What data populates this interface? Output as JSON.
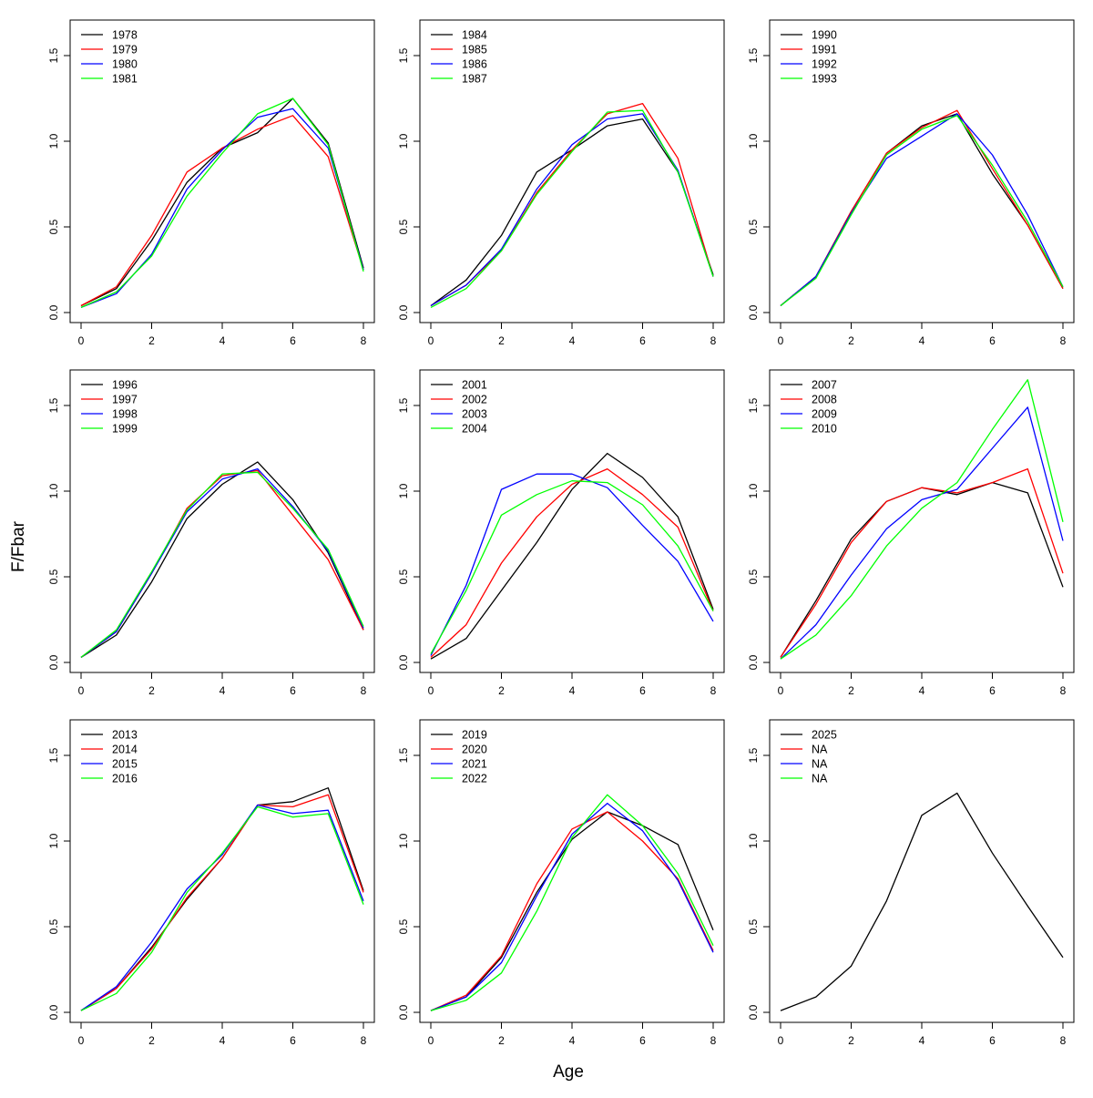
{
  "chart_data": {
    "type": "line",
    "xlabel": "Age",
    "ylabel": "F/Fbar",
    "xlim": [
      0,
      8
    ],
    "ylim": [
      0,
      1.75
    ],
    "x_ticks": [
      0,
      2,
      4,
      6,
      8
    ],
    "y_ticks": [
      0.0,
      0.5,
      1.0,
      1.5
    ],
    "y_tick_labels": [
      "0.0",
      "0.5",
      "1.0",
      "1.5"
    ],
    "grid": false,
    "legend_position": "top-left",
    "x": [
      0,
      1,
      2,
      3,
      4,
      5,
      6,
      7,
      8
    ],
    "series_colors": [
      "#000000",
      "#ff0000",
      "#0000ff",
      "#00ff00"
    ],
    "panels": [
      {
        "series": [
          {
            "name": "1978",
            "values": [
              0.04,
              0.14,
              0.42,
              0.76,
              0.96,
              1.05,
              1.25,
              0.99,
              0.26
            ]
          },
          {
            "name": "1979",
            "values": [
              0.04,
              0.15,
              0.45,
              0.82,
              0.96,
              1.07,
              1.15,
              0.91,
              0.25
            ]
          },
          {
            "name": "1980",
            "values": [
              0.03,
              0.11,
              0.34,
              0.72,
              0.95,
              1.14,
              1.19,
              0.96,
              0.25
            ]
          },
          {
            "name": "1981",
            "values": [
              0.03,
              0.12,
              0.33,
              0.68,
              0.93,
              1.16,
              1.25,
              0.98,
              0.24
            ]
          }
        ]
      },
      {
        "series": [
          {
            "name": "1984",
            "values": [
              0.04,
              0.19,
              0.45,
              0.82,
              0.95,
              1.09,
              1.13,
              0.82,
              0.22
            ]
          },
          {
            "name": "1985",
            "values": [
              0.04,
              0.16,
              0.36,
              0.7,
              0.95,
              1.16,
              1.22,
              0.9,
              0.21
            ]
          },
          {
            "name": "1986",
            "values": [
              0.04,
              0.16,
              0.37,
              0.72,
              0.98,
              1.13,
              1.16,
              0.83,
              0.21
            ]
          },
          {
            "name": "1987",
            "values": [
              0.03,
              0.14,
              0.36,
              0.69,
              0.94,
              1.17,
              1.18,
              0.82,
              0.21
            ]
          }
        ]
      },
      {
        "series": [
          {
            "name": "1990",
            "values": [
              0.04,
              0.21,
              0.59,
              0.93,
              1.09,
              1.16,
              0.81,
              0.51,
              0.14
            ]
          },
          {
            "name": "1991",
            "values": [
              0.04,
              0.21,
              0.59,
              0.93,
              1.08,
              1.18,
              0.84,
              0.51,
              0.14
            ]
          },
          {
            "name": "1992",
            "values": [
              0.04,
              0.21,
              0.58,
              0.9,
              1.03,
              1.16,
              0.92,
              0.57,
              0.15
            ]
          },
          {
            "name": "1993",
            "values": [
              0.04,
              0.2,
              0.57,
              0.92,
              1.07,
              1.15,
              0.86,
              0.53,
              0.15
            ]
          }
        ]
      },
      {
        "series": [
          {
            "name": "1996",
            "values": [
              0.03,
              0.16,
              0.47,
              0.84,
              1.04,
              1.17,
              0.95,
              0.64,
              0.19
            ]
          },
          {
            "name": "1997",
            "values": [
              0.03,
              0.18,
              0.52,
              0.9,
              1.09,
              1.12,
              0.86,
              0.6,
              0.19
            ]
          },
          {
            "name": "1998",
            "values": [
              0.03,
              0.18,
              0.52,
              0.88,
              1.07,
              1.13,
              0.91,
              0.65,
              0.2
            ]
          },
          {
            "name": "1999",
            "values": [
              0.03,
              0.19,
              0.53,
              0.89,
              1.1,
              1.11,
              0.9,
              0.66,
              0.21
            ]
          }
        ]
      },
      {
        "series": [
          {
            "name": "2001",
            "values": [
              0.02,
              0.14,
              0.42,
              0.7,
              1.01,
              1.22,
              1.08,
              0.85,
              0.31
            ]
          },
          {
            "name": "2002",
            "values": [
              0.03,
              0.22,
              0.58,
              0.85,
              1.04,
              1.13,
              0.98,
              0.79,
              0.3
            ]
          },
          {
            "name": "2003",
            "values": [
              0.04,
              0.45,
              1.01,
              1.1,
              1.1,
              1.02,
              0.8,
              0.59,
              0.24
            ]
          },
          {
            "name": "2004",
            "values": [
              0.05,
              0.42,
              0.86,
              0.98,
              1.06,
              1.05,
              0.92,
              0.68,
              0.3
            ]
          }
        ]
      },
      {
        "series": [
          {
            "name": "2007",
            "values": [
              0.03,
              0.36,
              0.72,
              0.94,
              1.02,
              0.98,
              1.05,
              0.99,
              0.44
            ]
          },
          {
            "name": "2008",
            "values": [
              0.03,
              0.34,
              0.7,
              0.94,
              1.02,
              0.99,
              1.05,
              1.13,
              0.52
            ]
          },
          {
            "name": "2009",
            "values": [
              0.02,
              0.22,
              0.51,
              0.78,
              0.95,
              1.01,
              1.25,
              1.49,
              0.71
            ]
          },
          {
            "name": "2010",
            "values": [
              0.02,
              0.16,
              0.39,
              0.68,
              0.9,
              1.05,
              1.36,
              1.65,
              0.82
            ]
          }
        ]
      },
      {
        "series": [
          {
            "name": "2013",
            "values": [
              0.01,
              0.14,
              0.38,
              0.66,
              0.9,
              1.21,
              1.23,
              1.31,
              0.71
            ]
          },
          {
            "name": "2014",
            "values": [
              0.01,
              0.14,
              0.37,
              0.67,
              0.9,
              1.21,
              1.2,
              1.27,
              0.7
            ]
          },
          {
            "name": "2015",
            "values": [
              0.01,
              0.15,
              0.41,
              0.72,
              0.92,
              1.21,
              1.16,
              1.18,
              0.65
            ]
          },
          {
            "name": "2016",
            "values": [
              0.01,
              0.11,
              0.35,
              0.7,
              0.93,
              1.2,
              1.14,
              1.16,
              0.63
            ]
          }
        ]
      },
      {
        "series": [
          {
            "name": "2019",
            "values": [
              0.01,
              0.09,
              0.32,
              0.7,
              1.01,
              1.17,
              1.09,
              0.98,
              0.48
            ]
          },
          {
            "name": "2020",
            "values": [
              0.01,
              0.1,
              0.33,
              0.75,
              1.07,
              1.17,
              1.0,
              0.78,
              0.36
            ]
          },
          {
            "name": "2021",
            "values": [
              0.01,
              0.09,
              0.29,
              0.68,
              1.04,
              1.22,
              1.06,
              0.77,
              0.35
            ]
          },
          {
            "name": "2022",
            "values": [
              0.01,
              0.07,
              0.23,
              0.59,
              1.02,
              1.27,
              1.09,
              0.81,
              0.39
            ]
          }
        ]
      },
      {
        "series": [
          {
            "name": "2025",
            "values": [
              0.01,
              0.09,
              0.27,
              0.65,
              1.15,
              1.28,
              0.93,
              0.62,
              0.32
            ]
          },
          {
            "name": "NA",
            "values": []
          },
          {
            "name": "NA",
            "values": []
          },
          {
            "name": "NA",
            "values": []
          }
        ]
      }
    ]
  }
}
